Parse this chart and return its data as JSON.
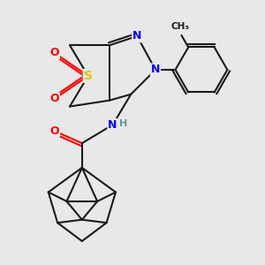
{
  "bg_color": "#e8e8e8",
  "bond_color": "#1a1a1a",
  "bond_width": 1.5,
  "atom_colors": {
    "S": "#cccc00",
    "O": "#ff0000",
    "N": "#0000ff",
    "C": "#1a1a1a",
    "H": "#5f9ea0"
  },
  "font_size": 9,
  "figsize": [
    3.0,
    3.0
  ],
  "dpi": 100
}
